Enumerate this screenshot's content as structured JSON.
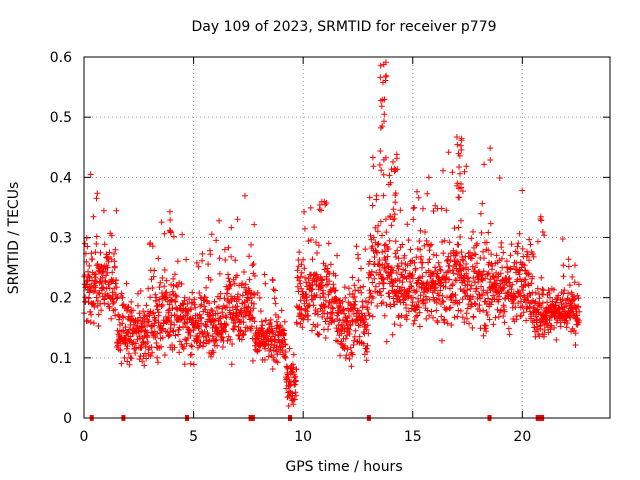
{
  "chart_data": {
    "type": "scatter",
    "title": "Day 109 of 2023, SRMTID for receiver p779",
    "xlabel": "GPS time / hours",
    "ylabel": "SRMTID / TECUs",
    "xlim": [
      0,
      24
    ],
    "ylim": [
      0,
      0.6
    ],
    "xticks": [
      0,
      5,
      10,
      15,
      20
    ],
    "xtick_labels": [
      "0",
      "5",
      "10",
      "15",
      "20"
    ],
    "yticks": [
      0,
      0.1,
      0.2,
      0.3,
      0.4,
      0.5,
      0.6
    ],
    "ytick_labels": [
      "0",
      "0.1",
      "0.2",
      "0.3",
      "0.4",
      "0.5",
      "0.6"
    ],
    "grid": true,
    "marker": "+",
    "series": [
      {
        "name": "SRMTID",
        "color": "#ff0000",
        "segments": [
          {
            "x": [
              0.0,
              0.5
            ],
            "center": 0.21,
            "spread": 0.055
          },
          {
            "x": [
              0.5,
              1.5
            ],
            "center": 0.22,
            "spread": 0.06
          },
          {
            "x": [
              1.5,
              3.0
            ],
            "center": 0.14,
            "spread": 0.04
          },
          {
            "x": [
              3.0,
              4.5
            ],
            "center": 0.17,
            "spread": 0.06
          },
          {
            "x": [
              4.5,
              6.5
            ],
            "center": 0.16,
            "spread": 0.05
          },
          {
            "x": [
              6.5,
              7.8
            ],
            "center": 0.19,
            "spread": 0.06
          },
          {
            "x": [
              7.8,
              9.2
            ],
            "center": 0.13,
            "spread": 0.035
          },
          {
            "x": [
              9.2,
              9.7
            ],
            "center": 0.06,
            "spread": 0.03
          },
          {
            "x": [
              9.7,
              11.5
            ],
            "center": 0.2,
            "spread": 0.06
          },
          {
            "x": [
              11.5,
              13.0
            ],
            "center": 0.16,
            "spread": 0.05
          },
          {
            "x": [
              13.0,
              14.0
            ],
            "center": 0.25,
            "spread": 0.08
          },
          {
            "x": [
              14.0,
              16.5
            ],
            "center": 0.22,
            "spread": 0.06
          },
          {
            "x": [
              16.5,
              17.5
            ],
            "center": 0.23,
            "spread": 0.07
          },
          {
            "x": [
              17.5,
              20.5
            ],
            "center": 0.22,
            "spread": 0.06
          },
          {
            "x": [
              20.5,
              21.0
            ],
            "center": 0.18,
            "spread": 0.05
          },
          {
            "x": [
              21.0,
              22.6
            ],
            "center": 0.18,
            "spread": 0.035
          }
        ],
        "clusters": [
          {
            "x": [
              13.5,
              13.8
            ],
            "y": [
              0.4,
              0.6
            ],
            "count": 20
          },
          {
            "x": [
              13.9,
              14.3
            ],
            "y": [
              0.33,
              0.45
            ],
            "count": 18
          },
          {
            "x": [
              17.0,
              17.4
            ],
            "y": [
              0.36,
              0.47
            ],
            "count": 18
          },
          {
            "x": [
              18.5,
              18.6
            ],
            "y": [
              0.42,
              0.47
            ],
            "count": 2
          },
          {
            "x": [
              3.9,
              4.0
            ],
            "y": [
              0.3,
              0.36
            ],
            "count": 6
          },
          {
            "x": [
              20.8,
              21.0
            ],
            "y": [
              0.3,
              0.38
            ],
            "count": 5
          },
          {
            "x": [
              10.8,
              11.0
            ],
            "y": [
              0.33,
              0.38
            ],
            "count": 3
          }
        ],
        "zero_points": [
          0.35,
          1.8,
          4.7,
          7.6,
          7.7,
          9.4,
          13.0,
          18.5,
          20.7,
          20.8,
          20.9
        ]
      }
    ]
  }
}
